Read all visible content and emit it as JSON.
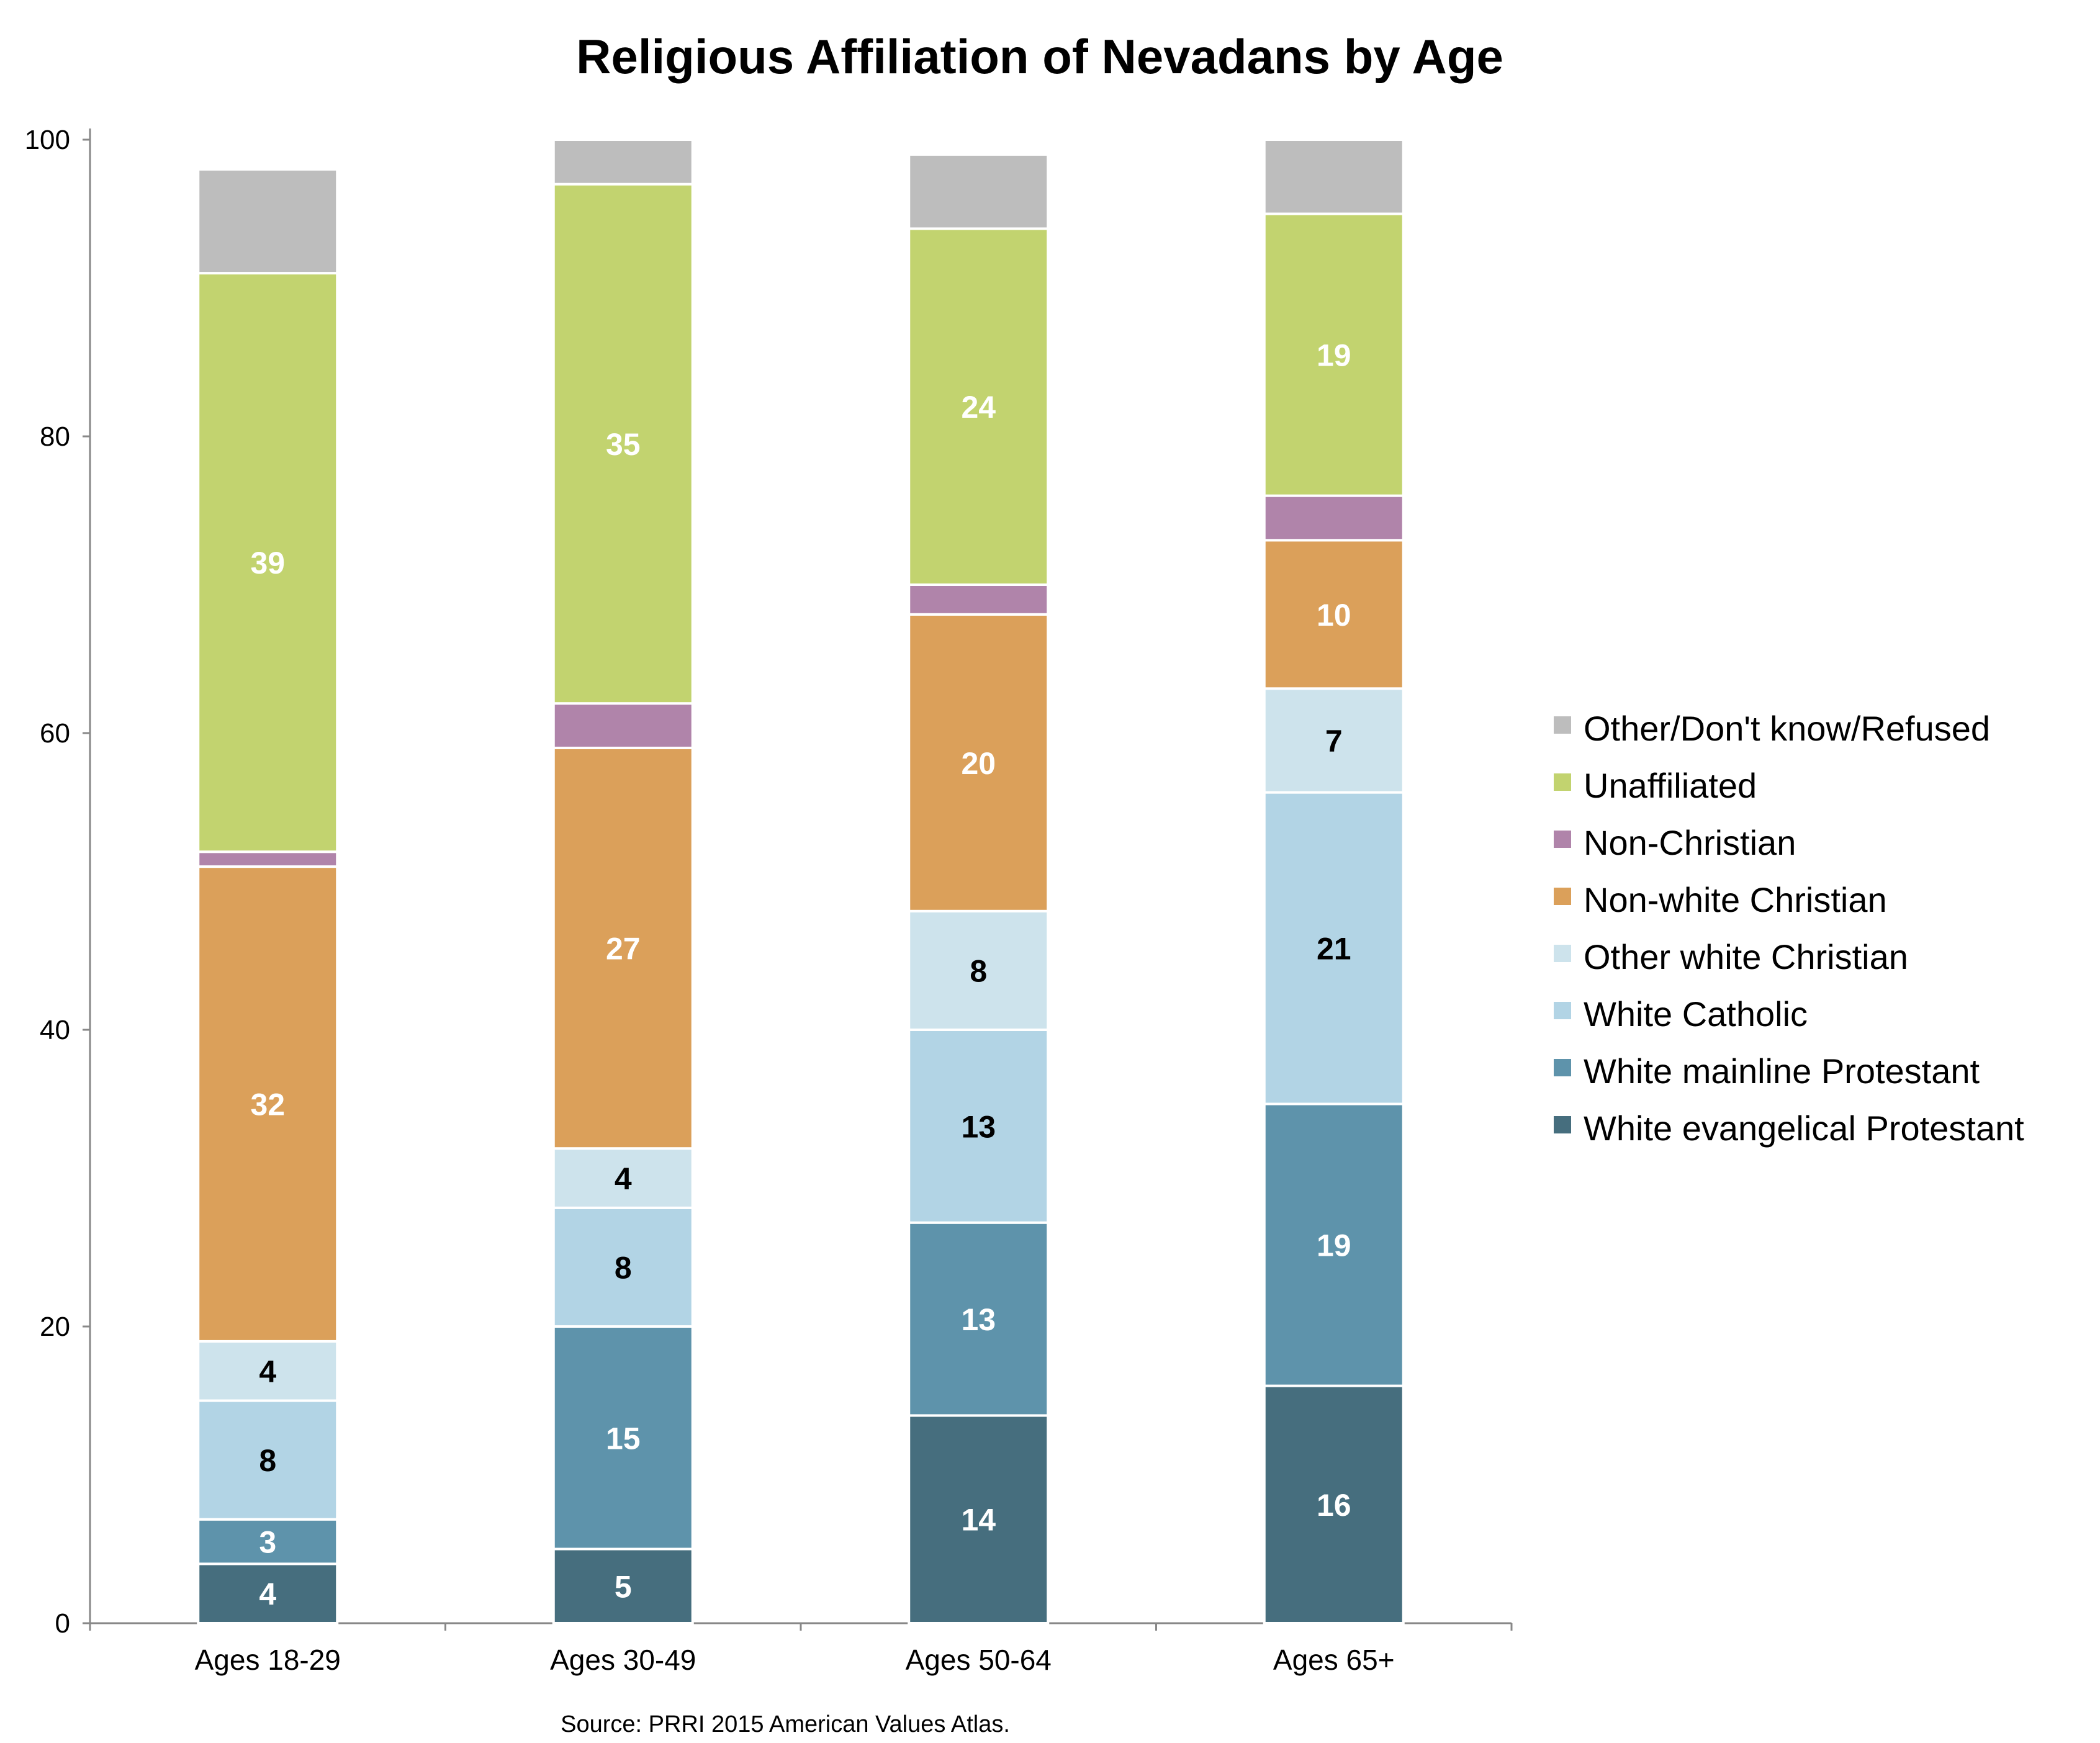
{
  "chart_data": {
    "type": "bar",
    "stacked": true,
    "title": "Religious Affiliation of Nevadans by Age",
    "source": "Source: PRRI 2015 American Values Atlas.",
    "categories": [
      "Ages 18-29",
      "Ages 30-49",
      "Ages 50-64",
      "Ages 65+"
    ],
    "ylim": [
      0,
      100
    ],
    "yticks": [
      "0",
      "20",
      "40",
      "60",
      "80",
      "100"
    ],
    "grid": false,
    "legend_position": "right",
    "series": [
      {
        "name": "White evangelical Protestant",
        "color": "#466e7e",
        "label_color": "#ffffff",
        "values": [
          4,
          5,
          14,
          16
        ],
        "labels": [
          "4",
          "5",
          "14",
          "16"
        ]
      },
      {
        "name": "White mainline Protestant",
        "color": "#5e93ab",
        "label_color": "#ffffff",
        "values": [
          3,
          15,
          13,
          19
        ],
        "labels": [
          "3",
          "15",
          "13",
          "19"
        ]
      },
      {
        "name": "White Catholic",
        "color": "#b2d4e5",
        "label_color": "#000000",
        "values": [
          8,
          8,
          13,
          21
        ],
        "labels": [
          "8",
          "8",
          "13",
          "21"
        ]
      },
      {
        "name": "Other white Christian",
        "color": "#cde3ec",
        "label_color": "#000000",
        "values": [
          4,
          4,
          8,
          7
        ],
        "labels": [
          "4",
          "4",
          "8",
          "7"
        ]
      },
      {
        "name": "Non-white Christian",
        "color": "#dba05a",
        "label_color": "#ffffff",
        "values": [
          32,
          27,
          20,
          10
        ],
        "labels": [
          "32",
          "27",
          "20",
          "10"
        ]
      },
      {
        "name": "Non-Christian",
        "color": "#b084aa",
        "label_color": "#ffffff",
        "values": [
          1,
          3,
          2,
          3
        ],
        "labels": [
          "",
          "",
          "",
          ""
        ]
      },
      {
        "name": "Unaffiliated",
        "color": "#c2d36f",
        "label_color": "#ffffff",
        "values": [
          39,
          35,
          24,
          19
        ],
        "labels": [
          "39",
          "35",
          "24",
          "19"
        ]
      },
      {
        "name": "Other/Don't know/Refused",
        "color": "#bdbdbd",
        "label_color": "#ffffff",
        "values": [
          7,
          3,
          5,
          5
        ],
        "labels": [
          "",
          "",
          "",
          ""
        ]
      }
    ]
  }
}
